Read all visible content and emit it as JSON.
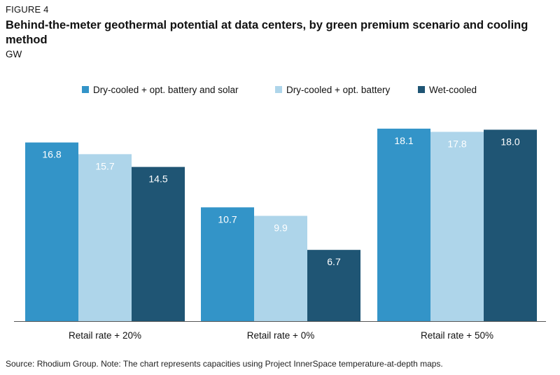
{
  "figure_label": "FIGURE 4",
  "title": "Behind-the-meter geothermal potential at data centers, by green premium scenario and cooling method",
  "unit": "GW",
  "source": "Source: Rhodium Group. Note: The chart represents capacities using Project InnerSpace temperature-at-depth maps.",
  "chart_data": {
    "type": "bar",
    "title": "Behind-the-meter geothermal potential at data centers, by green premium scenario and cooling method",
    "ylabel": "GW",
    "xlabel": "",
    "categories": [
      "Retail rate + 20%",
      "Retail rate + 0%",
      "Retail rate + 50%"
    ],
    "series": [
      {
        "name": "Dry-cooled + opt. battery and solar",
        "values": [
          16.8,
          10.7,
          18.1
        ],
        "color": "#3394c8"
      },
      {
        "name": "Dry-cooled + opt. battery",
        "values": [
          15.7,
          9.9,
          17.8
        ],
        "color": "#aed5ea"
      },
      {
        "name": "Wet-cooled",
        "values": [
          14.5,
          6.7,
          18.0
        ],
        "color": "#1f5574"
      }
    ],
    "value_labels": [
      [
        "16.8",
        "15.7",
        "14.5"
      ],
      [
        "10.7",
        "9.9",
        "6.7"
      ],
      [
        "18.1",
        "17.8",
        "18.0"
      ]
    ],
    "ylim": [
      0,
      20
    ],
    "grid": false,
    "legend_position": "top-center"
  }
}
